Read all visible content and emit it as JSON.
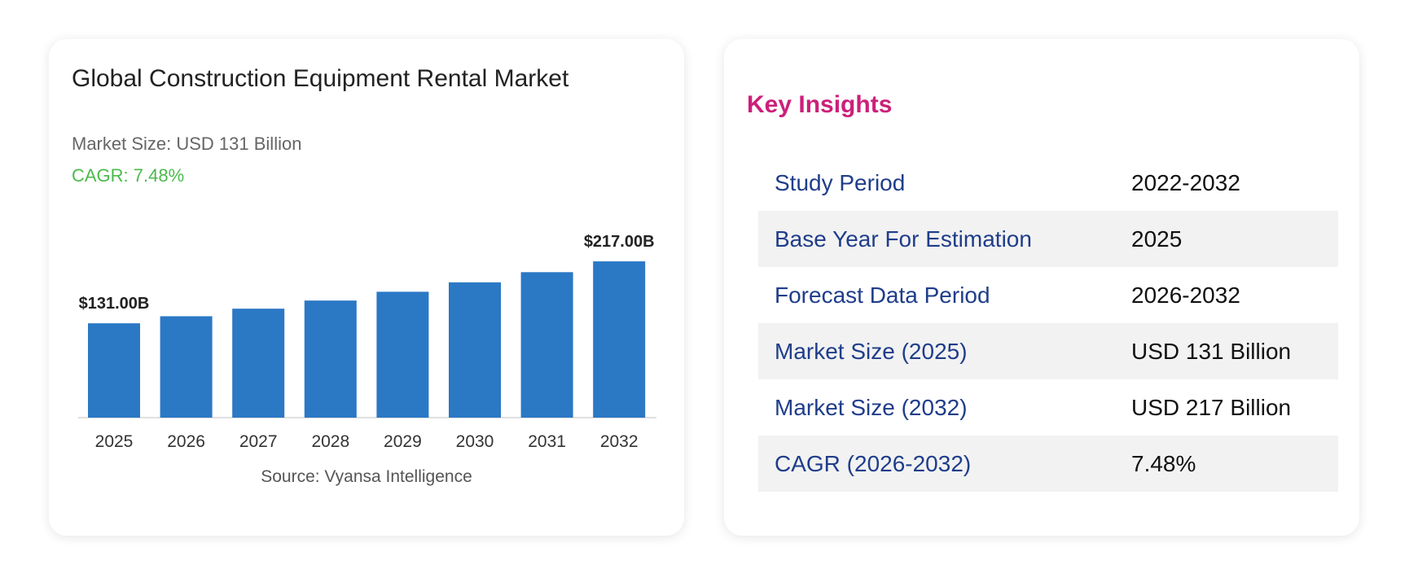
{
  "chart_data": {
    "type": "bar",
    "title": "Global Construction Equipment Rental Market",
    "subtitle_market_size": "Market Size: USD 131 Billion",
    "subtitle_cagr": "CAGR: 7.48%",
    "categories": [
      "2025",
      "2026",
      "2027",
      "2028",
      "2029",
      "2030",
      "2031",
      "2032"
    ],
    "values": [
      131,
      140.8,
      151.3,
      162.6,
      174.8,
      187.9,
      202.0,
      217.0
    ],
    "value_labels": [
      {
        "index": 0,
        "text": "$131.00B"
      },
      {
        "index": 7,
        "text": "$217.00B"
      }
    ],
    "ylim": [
      0,
      260
    ],
    "xlabel": "",
    "ylabel": "",
    "grid": false,
    "legend": "none",
    "bar_color": "#2b78c5",
    "source": "Source: Vyansa Intelligence"
  },
  "insights": {
    "title": "Key Insights",
    "title_color": "#cc1f7a",
    "rows": [
      {
        "label": "Study Period",
        "value": "2022-2032"
      },
      {
        "label": "Base Year For Estimation",
        "value": "2025"
      },
      {
        "label": "Forecast Data Period",
        "value": "2026-2032"
      },
      {
        "label": "Market Size (2025)",
        "value": "USD 131 Billion"
      },
      {
        "label": "Market Size (2032)",
        "value": "USD 217 Billion"
      },
      {
        "label": "CAGR (2026-2032)",
        "value": "7.48%"
      }
    ]
  }
}
